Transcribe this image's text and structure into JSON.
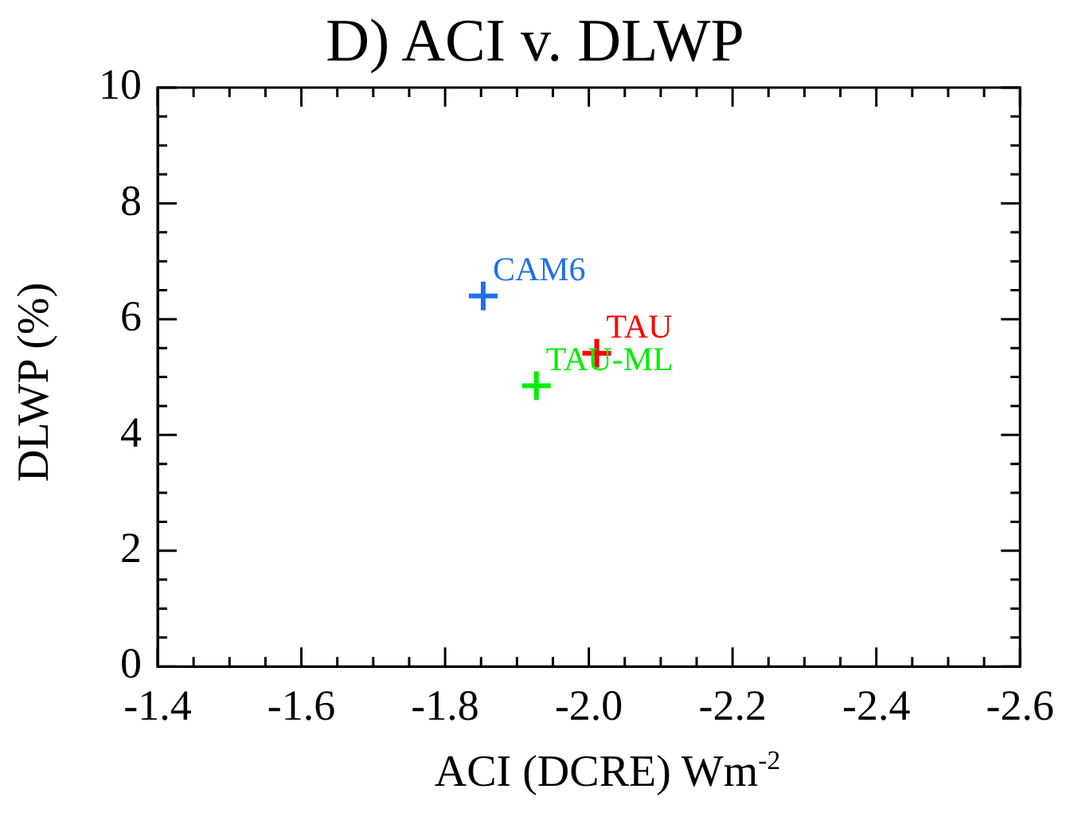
{
  "chart_data": {
    "type": "scatter",
    "title": "D) ACI v. DLWP",
    "xlabel": "ACI (DCRE) Wm$^{-2}$",
    "ylabel": "DLWP (%)",
    "series": [
      {
        "name": "CAM6",
        "color": "#1f6fef",
        "x": [
          -1.853
        ],
        "values": [
          6.4
        ]
      },
      {
        "name": "TAU",
        "color": "#ff0000",
        "x": [
          -2.011
        ],
        "values": [
          5.41
        ]
      },
      {
        "name": "TAU-ML",
        "color": "#00ee00",
        "x": [
          -1.927
        ],
        "values": [
          4.85
        ]
      }
    ],
    "xlim": [
      -1.4,
      -2.6
    ],
    "xticks": [
      -1.4,
      {
        "value": -1.45,
        "label": null
      },
      {
        "value": -1.5,
        "label": null
      },
      {
        "value": -1.55,
        "label": null
      },
      -1.6,
      {
        "value": -1.65,
        "label": null
      },
      {
        "value": -1.7,
        "label": null
      },
      {
        "value": -1.75,
        "label": null
      },
      -1.8,
      {
        "value": -1.85,
        "label": null
      },
      {
        "value": -1.9,
        "label": null
      },
      {
        "value": -1.95,
        "label": null
      },
      {
        "value": -2.0,
        "label": "-2.0"
      },
      {
        "value": -2.05,
        "label": null
      },
      {
        "value": -2.1,
        "label": null
      },
      {
        "value": -2.15,
        "label": null
      },
      -2.2,
      {
        "value": -2.25,
        "label": null
      },
      {
        "value": -2.3,
        "label": null
      },
      {
        "value": -2.35,
        "label": null
      },
      -2.4,
      {
        "value": -2.45,
        "label": null
      },
      {
        "value": -2.5,
        "label": null
      },
      {
        "value": -2.55,
        "label": null
      },
      -2.6
    ],
    "ylim": [
      0,
      10
    ],
    "yticks": [
      0,
      {
        "value": 0.5,
        "label": null
      },
      {
        "value": 1,
        "label": null
      },
      {
        "value": 1.5,
        "label": null
      },
      2,
      {
        "value": 2.5,
        "label": null
      },
      {
        "value": 3,
        "label": null
      },
      {
        "value": 3.5,
        "label": null
      },
      4,
      {
        "value": 4.5,
        "label": null
      },
      {
        "value": 5,
        "label": null
      },
      {
        "value": 5.5,
        "label": null
      },
      6,
      {
        "value": 6.5,
        "label": null
      },
      {
        "value": 7,
        "label": null
      },
      {
        "value": 7.5,
        "label": null
      },
      8,
      {
        "value": 8.5,
        "label": null
      },
      {
        "value": 9,
        "label": null
      },
      {
        "value": 9.5,
        "label": null
      },
      10
    ],
    "marker": "cross",
    "grid": false,
    "legend": false
  }
}
